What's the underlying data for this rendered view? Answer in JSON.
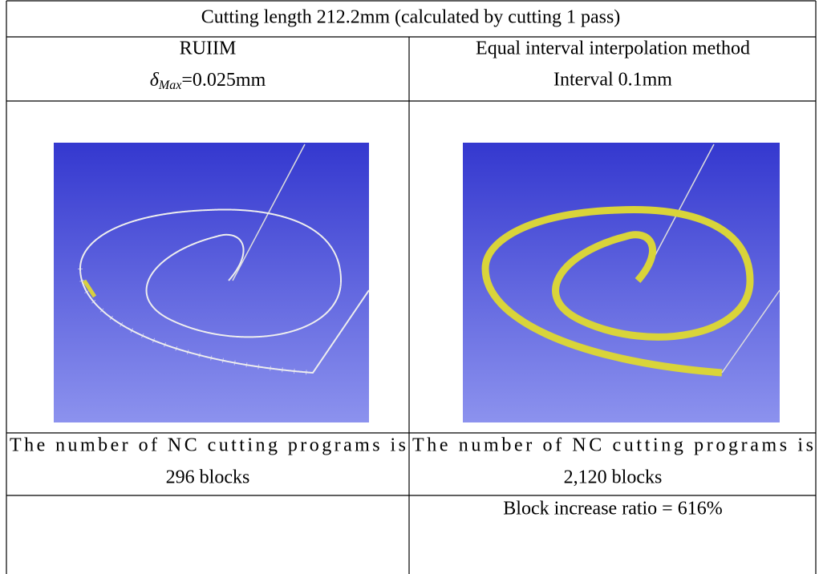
{
  "table": {
    "title": "Cutting length 212.2mm (calculated by cutting 1 pass)",
    "columns": [
      {
        "name": "RUIIM",
        "parameter": {
          "symbol": "δ",
          "subscript": "Max",
          "value": "=0.025mm"
        }
      },
      {
        "name": "Equal interval interpolation method",
        "parameter": "Interval 0.1mm"
      }
    ],
    "programs": [
      {
        "label": "The number of NC cutting programs is",
        "count": "296 blocks"
      },
      {
        "label": "The number of NC cutting programs is",
        "count": "2,120 blocks"
      }
    ],
    "ratio": "Block increase ratio = 616%"
  }
}
